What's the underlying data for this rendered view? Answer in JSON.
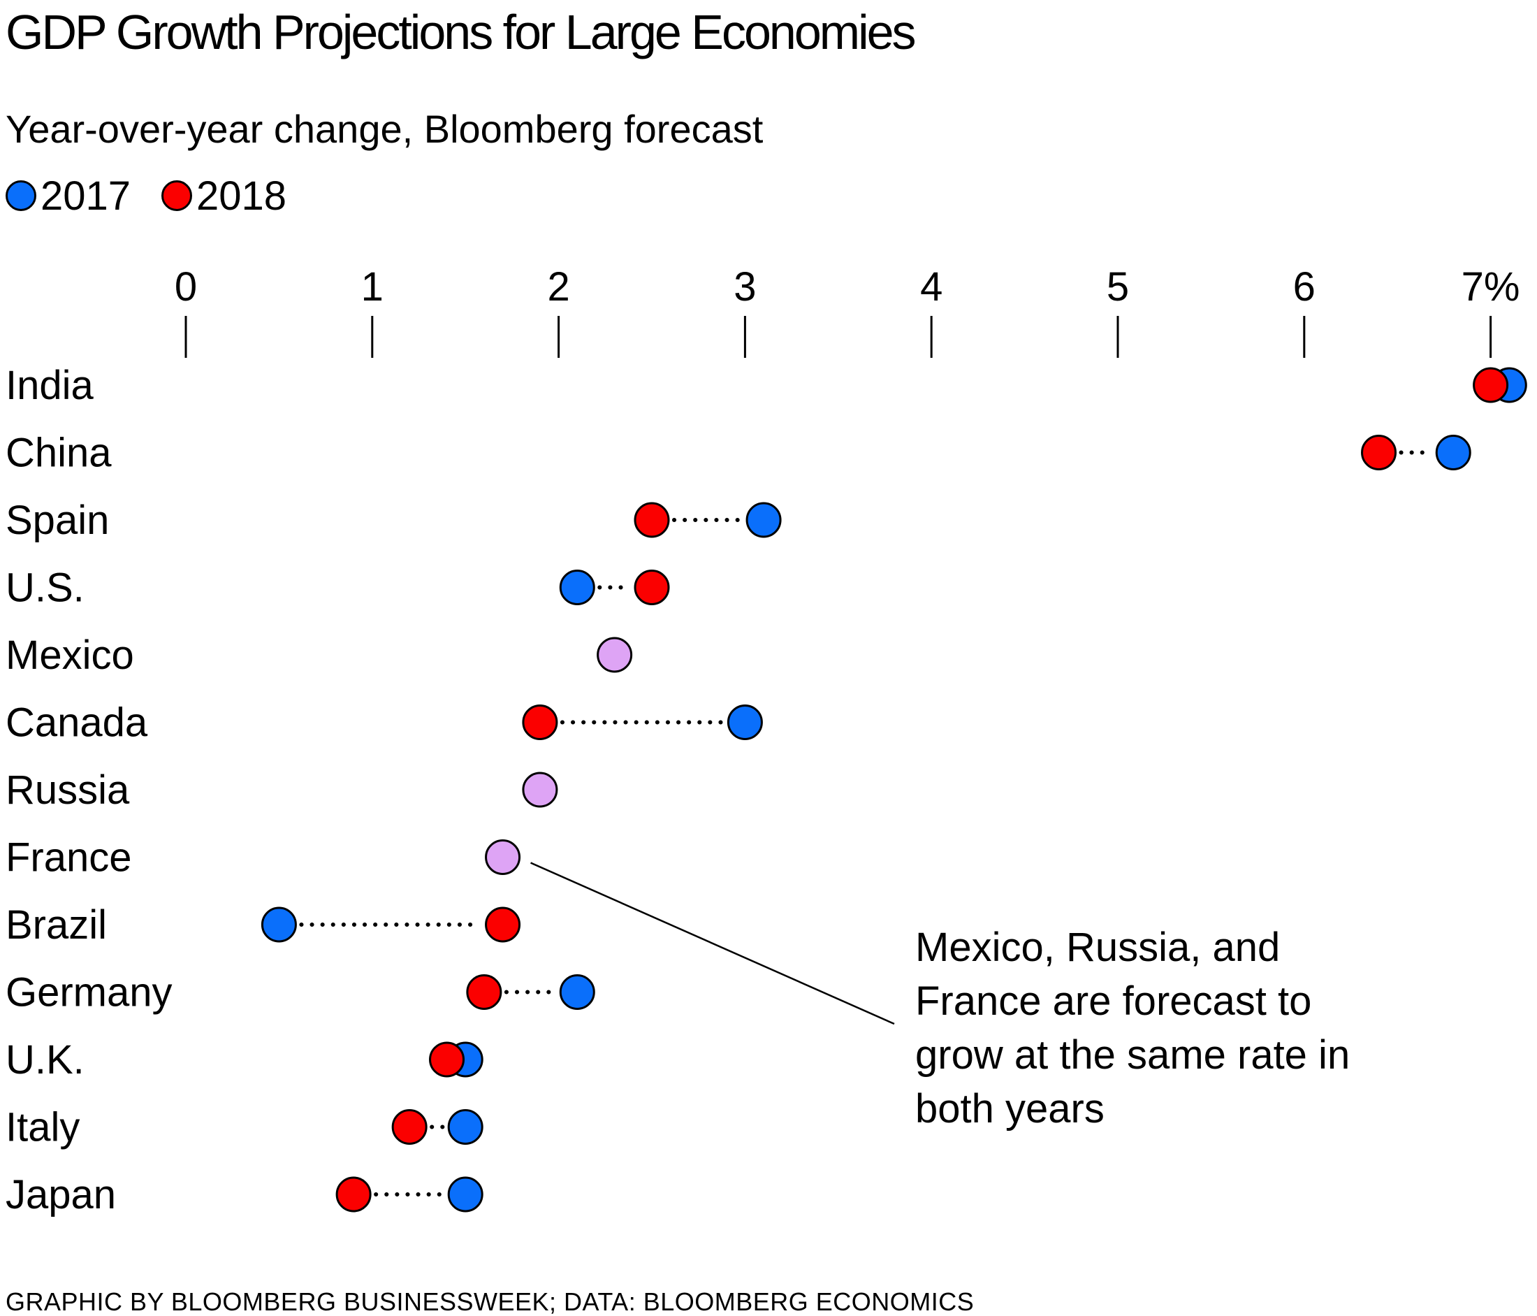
{
  "title": "GDP Growth Projections for Large Economies",
  "subtitle": "Year-over-year change, Bloomberg forecast",
  "legend": [
    {
      "label": "2017",
      "color": "#0a6ffb"
    },
    {
      "label": "2018",
      "color": "#fb0000"
    }
  ],
  "colors": {
    "y2017": "#0a6ffb",
    "y2018": "#fb0000",
    "same": "#dea4f5"
  },
  "source": "GRAPHIC BY BLOOMBERG BUSINESSWEEK; DATA: BLOOMBERG ECONOMICS",
  "chart_data": {
    "type": "scatter",
    "xlim": [
      0,
      7
    ],
    "ticks": [
      "0",
      "1",
      "2",
      "3",
      "4",
      "5",
      "6",
      "7%"
    ],
    "series": [
      {
        "name": "2017"
      },
      {
        "name": "2018"
      }
    ],
    "countries": [
      {
        "name": "India",
        "y2017": 7.1,
        "y2018": 7.0
      },
      {
        "name": "China",
        "y2017": 6.8,
        "y2018": 6.4
      },
      {
        "name": "Spain",
        "y2017": 3.1,
        "y2018": 2.5
      },
      {
        "name": "U.S.",
        "y2017": 2.1,
        "y2018": 2.5
      },
      {
        "name": "Mexico",
        "y2017": 2.3,
        "y2018": 2.3
      },
      {
        "name": "Canada",
        "y2017": 3.0,
        "y2018": 1.9
      },
      {
        "name": "Russia",
        "y2017": 1.9,
        "y2018": 1.9
      },
      {
        "name": "France",
        "y2017": 1.7,
        "y2018": 1.7
      },
      {
        "name": "Brazil",
        "y2017": 0.5,
        "y2018": 1.7
      },
      {
        "name": "Germany",
        "y2017": 2.1,
        "y2018": 1.6
      },
      {
        "name": "U.K.",
        "y2017": 1.5,
        "y2018": 1.4
      },
      {
        "name": "Italy",
        "y2017": 1.5,
        "y2018": 1.2
      },
      {
        "name": "Japan",
        "y2017": 1.5,
        "y2018": 0.9
      }
    ],
    "annotation": {
      "lines": [
        "Mexico, Russia, and",
        "France are forecast to",
        "grow at the same rate in",
        "both years"
      ],
      "target": "France"
    }
  }
}
